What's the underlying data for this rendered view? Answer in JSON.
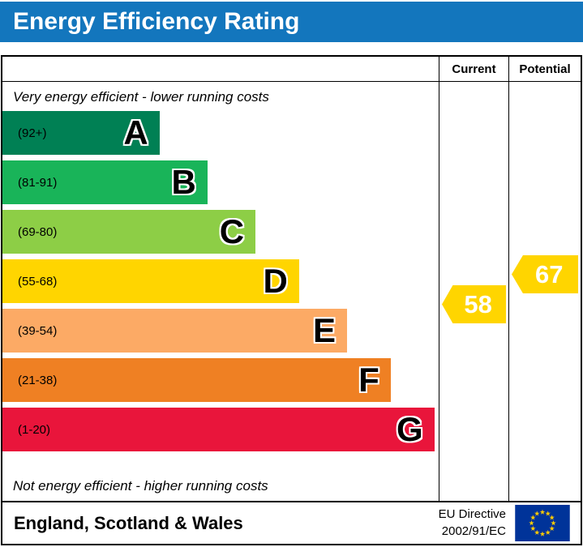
{
  "title": "Energy Efficiency Rating",
  "header": {
    "current": "Current",
    "potential": "Potential"
  },
  "notes": {
    "top": "Very energy efficient - lower running costs",
    "bottom": "Not energy efficient - higher running costs"
  },
  "bands": [
    {
      "letter": "A",
      "range": "(92+)",
      "color": "#008054",
      "width_pct": 36
    },
    {
      "letter": "B",
      "range": "(81-91)",
      "color": "#19b459",
      "width_pct": 47
    },
    {
      "letter": "C",
      "range": "(69-80)",
      "color": "#8dce46",
      "width_pct": 58
    },
    {
      "letter": "D",
      "range": "(55-68)",
      "color": "#ffd500",
      "width_pct": 68
    },
    {
      "letter": "E",
      "range": "(39-54)",
      "color": "#fcaa65",
      "width_pct": 79
    },
    {
      "letter": "F",
      "range": "(21-38)",
      "color": "#ef8023",
      "width_pct": 89
    },
    {
      "letter": "G",
      "range": "(1-20)",
      "color": "#e9153b",
      "width_pct": 99
    }
  ],
  "current": {
    "value": "58",
    "color": "#ffd500",
    "band": "D"
  },
  "potential": {
    "value": "67",
    "color": "#ffd500",
    "band": "D"
  },
  "footer": {
    "region": "England, Scotland & Wales",
    "directive": [
      "EU Directive",
      "2002/91/EC"
    ]
  },
  "colors": {
    "title_bg": "#1376bd",
    "flag_bg": "#003399",
    "flag_star": "#ffcc00"
  },
  "chart_data": {
    "type": "bar",
    "title": "Energy Efficiency Rating",
    "categories": [
      "A",
      "B",
      "C",
      "D",
      "E",
      "F",
      "G"
    ],
    "band_ranges": [
      "92+",
      "81-91",
      "69-80",
      "55-68",
      "39-54",
      "21-38",
      "1-20"
    ],
    "bar_width_pct": [
      36,
      47,
      58,
      68,
      79,
      89,
      99
    ],
    "markers": {
      "current": 58,
      "potential": 67,
      "current_band": "D",
      "potential_band": "D"
    },
    "annotations": [
      "Very energy efficient - lower running costs",
      "Not energy efficient - higher running costs"
    ],
    "legend_position": "none",
    "grid": false
  }
}
